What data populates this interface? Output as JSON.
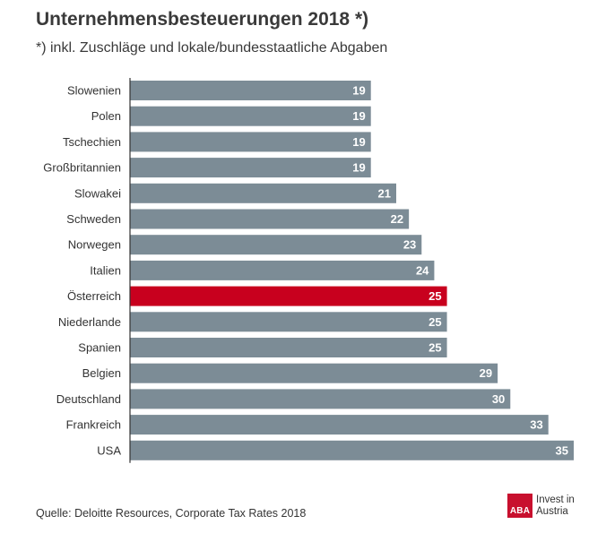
{
  "header": {
    "title": "Unternehmensbesteuerungen 2018 *)",
    "subtitle": "*) inkl. Zuschläge und lokale/bundesstaatliche Abgaben"
  },
  "footer": {
    "source": "Quelle: Deloitte Resources, Corporate Tax Rates 2018",
    "logo_mark": "ABA",
    "logo_line1": "Invest in",
    "logo_line2": "Austria"
  },
  "colors": {
    "bar": "#7c8c96",
    "highlight": "#c8001e",
    "label_text": "#ffffff",
    "axis": "#333333",
    "brand": "#c8102e"
  },
  "chart_data": {
    "type": "bar",
    "orientation": "horizontal",
    "title": "Unternehmensbesteuerungen 2018 *)",
    "subtitle": "*) inkl. Zuschläge und lokale/bundesstaatliche Abgaben",
    "categories": [
      "Slowenien",
      "Polen",
      "Tschechien",
      "Großbritannien",
      "Slowakei",
      "Schweden",
      "Norwegen",
      "Italien",
      "Österreich",
      "Niederlande",
      "Spanien",
      "Belgien",
      "Deutschland",
      "Frankreich",
      "USA"
    ],
    "values": [
      19,
      19,
      19,
      19,
      21,
      22,
      23,
      24,
      25,
      25,
      25,
      29,
      30,
      33,
      35
    ],
    "highlight": "Österreich",
    "xlim": [
      0,
      35
    ],
    "data_labels": true,
    "grid": false,
    "legend": "none"
  }
}
